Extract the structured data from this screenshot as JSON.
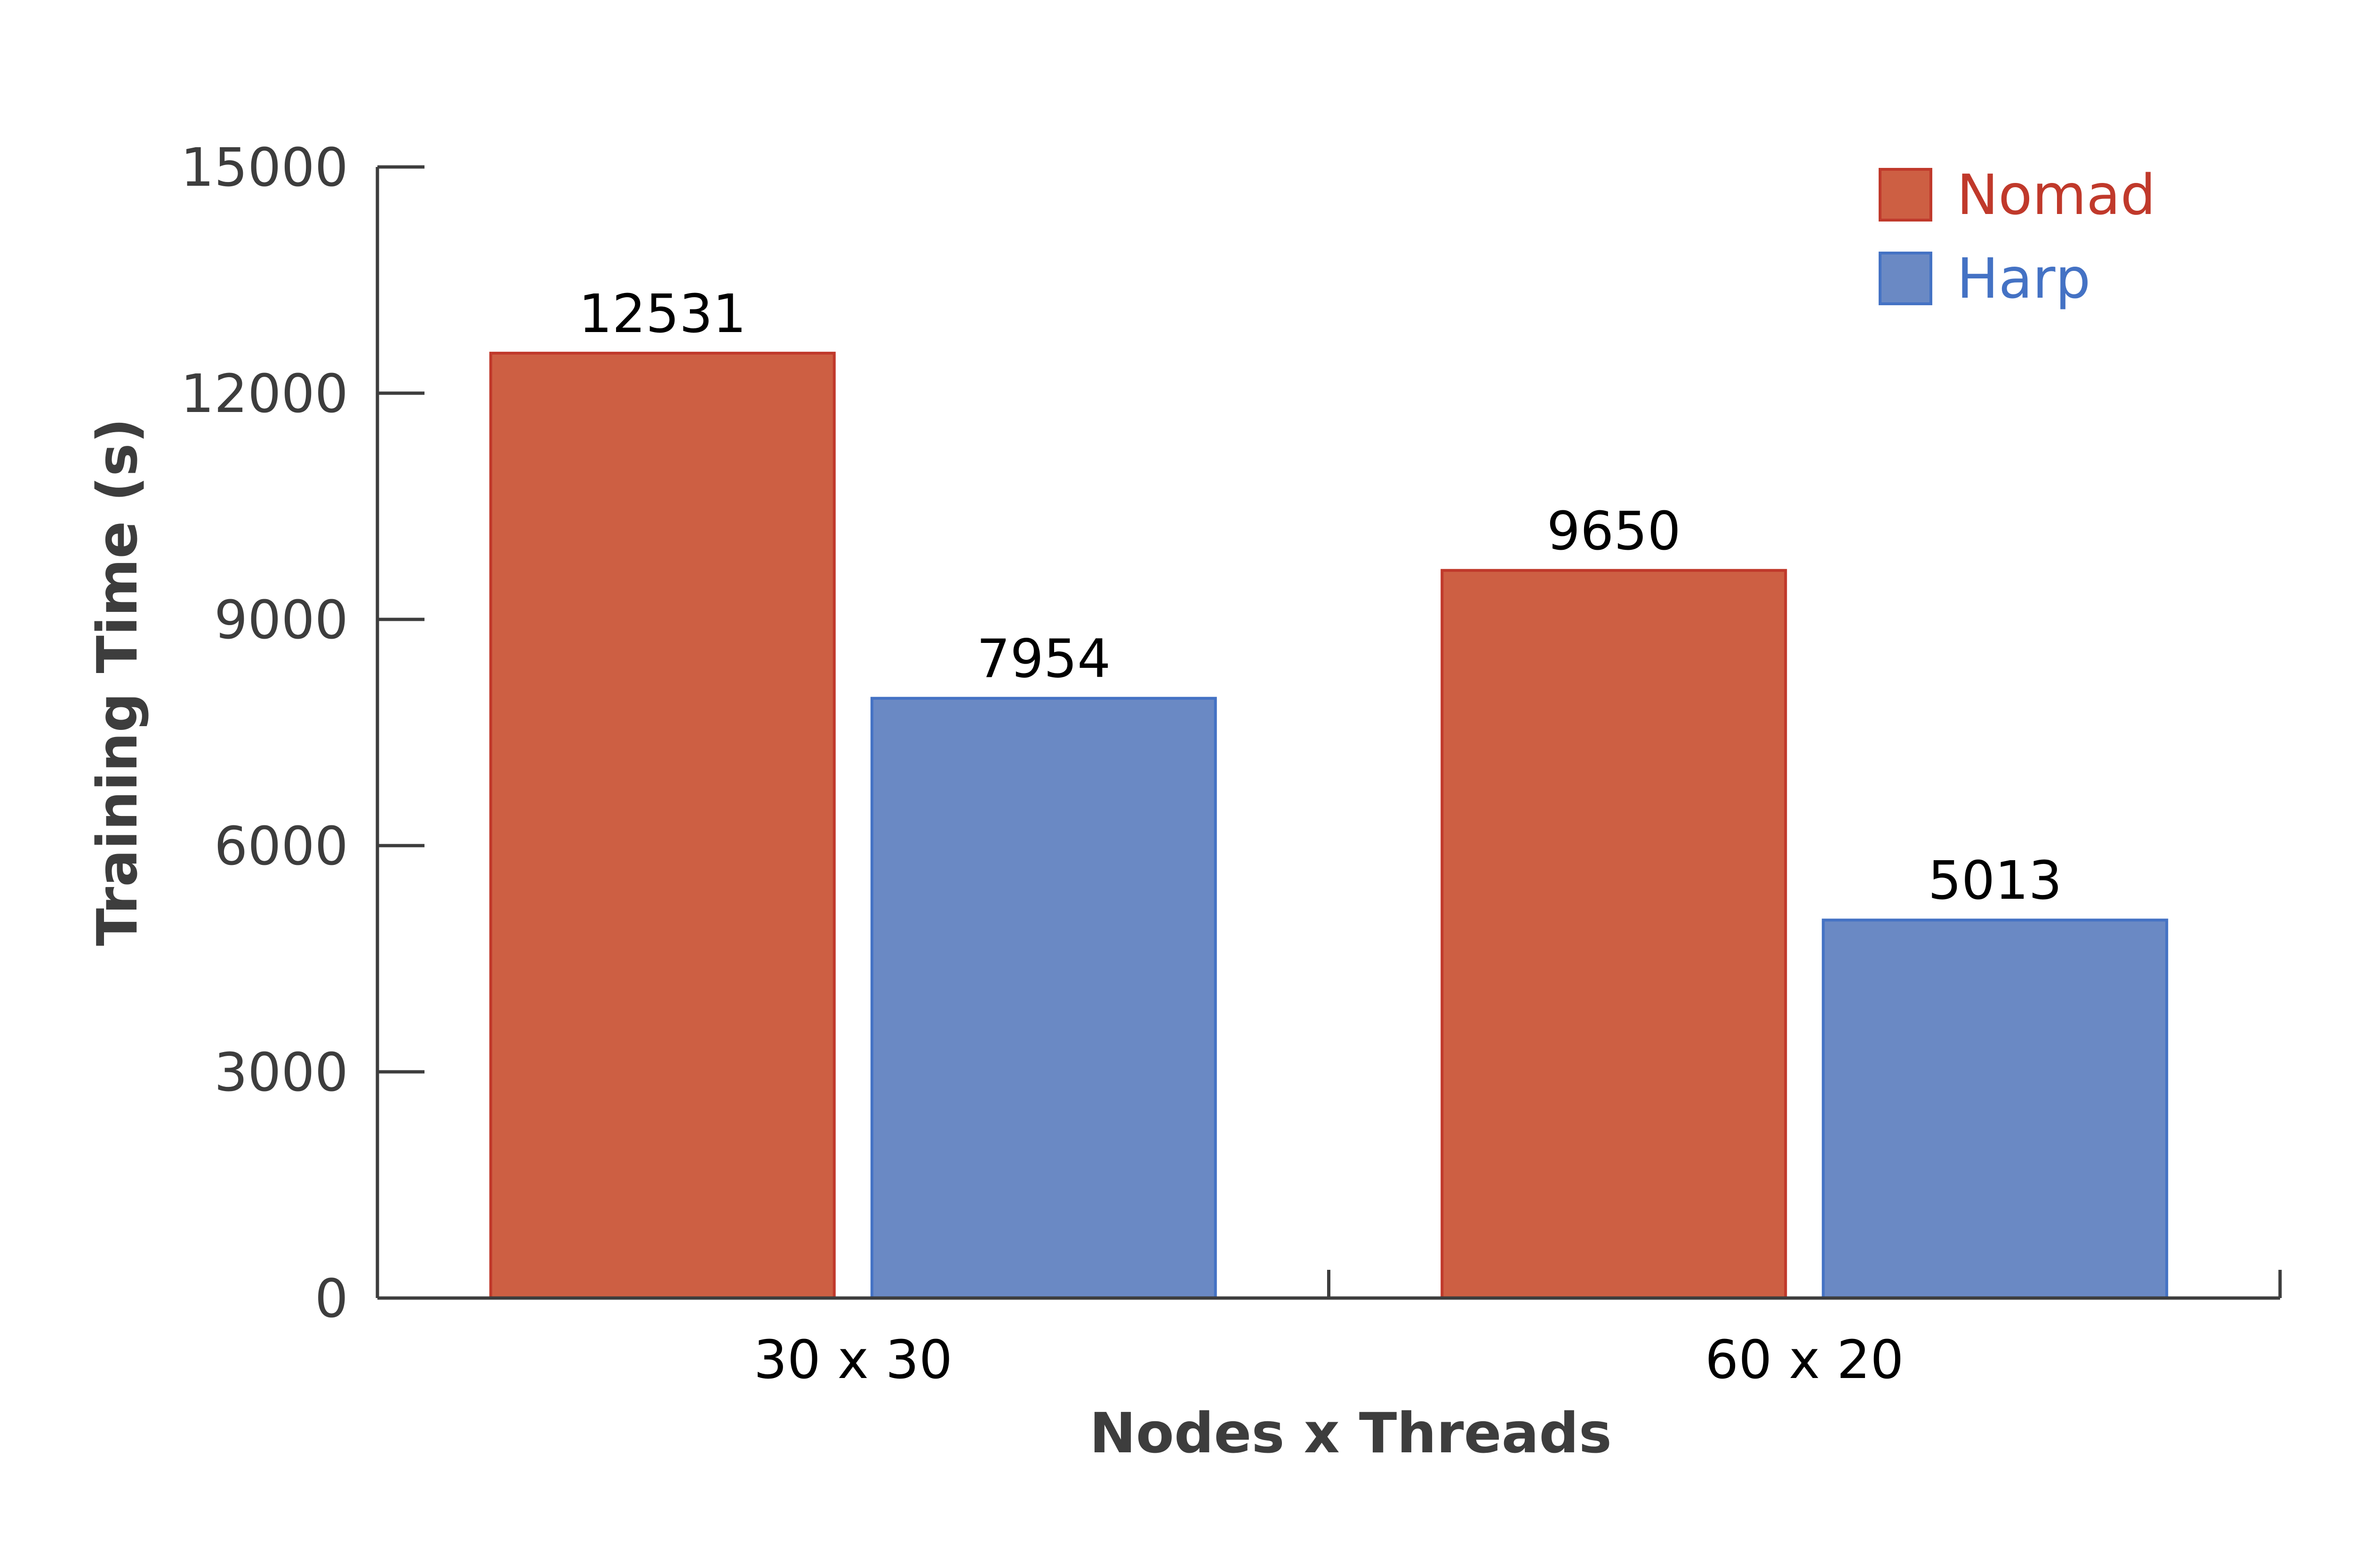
{
  "chart_data": {
    "type": "bar",
    "categories": [
      "30 x 30",
      "60 x 20"
    ],
    "series": [
      {
        "name": "Nomad",
        "values": [
          12531,
          9650
        ],
        "color": "#cd5f43",
        "stroke": "#c0392b",
        "legend_color": "#c0392b"
      },
      {
        "name": "Harp",
        "values": [
          7954,
          5013
        ],
        "color": "#6a89c4",
        "stroke": "#4472c4",
        "legend_color": "#4472c4"
      }
    ],
    "data_labels": [
      [
        "12531",
        "9650"
      ],
      [
        "7954",
        "5013"
      ]
    ],
    "xlabel": "Nodes x Threads",
    "ylabel": "Training Time (s)",
    "ylim": [
      0,
      15000
    ],
    "yticks": [
      0,
      3000,
      6000,
      9000,
      12000,
      15000
    ],
    "grid": false,
    "legend_position": "top-right"
  }
}
